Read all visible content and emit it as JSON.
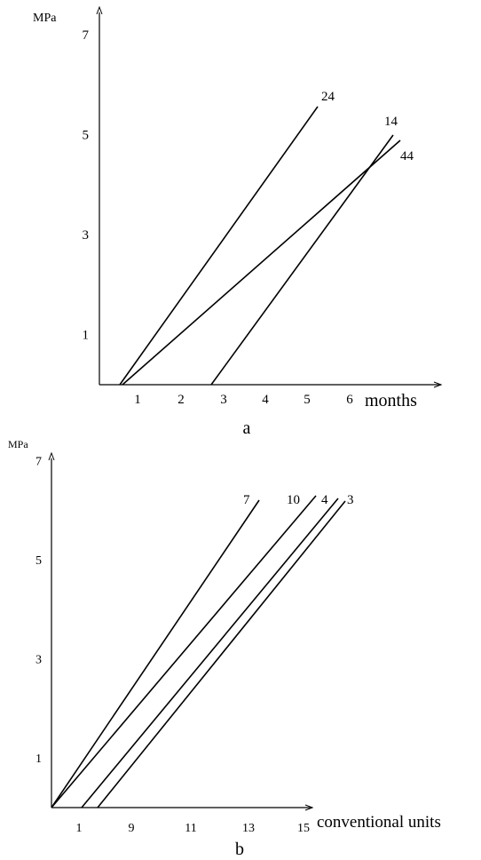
{
  "chart_data": [
    {
      "type": "line",
      "panel_label": "a",
      "xlabel": "months",
      "ylabel": "MPa",
      "x_ticks": [
        "1",
        "2",
        "3",
        "4",
        "5",
        "6"
      ],
      "y_ticks": [
        "1",
        "3",
        "5",
        "7"
      ],
      "ylim": [
        0,
        7.6
      ],
      "series": [
        {
          "name": "24",
          "points": [
            [
              0.45,
              0
            ],
            [
              5.2,
              5.55
            ]
          ]
        },
        {
          "name": "14",
          "points": [
            [
              2.7,
              0
            ],
            [
              6.9,
              4.95
            ]
          ]
        },
        {
          "name": "44",
          "points": [
            [
              0.5,
              0
            ],
            [
              7.0,
              4.8
            ]
          ]
        }
      ]
    },
    {
      "type": "line",
      "panel_label": "b",
      "xlabel": "conventional units",
      "ylabel": "MPa",
      "x_ticks": [
        "1",
        "9",
        "11",
        "13",
        "15"
      ],
      "y_ticks": [
        "1",
        "3",
        "5",
        "7"
      ],
      "ylim": [
        0,
        7.7
      ],
      "series": [
        {
          "name": "7",
          "points": [
            [
              0,
              0
            ],
            [
              12.4,
              6.2
            ]
          ]
        },
        {
          "name": "10",
          "points": [
            [
              0,
              0
            ],
            [
              14.5,
              6.2
            ]
          ]
        },
        {
          "name": "4",
          "points": [
            [
              1.1,
              0
            ],
            [
              15.4,
              6.2
            ]
          ]
        },
        {
          "name": "3",
          "points": [
            [
              1.7,
              0
            ],
            [
              15.8,
              6.2
            ]
          ]
        }
      ]
    }
  ]
}
